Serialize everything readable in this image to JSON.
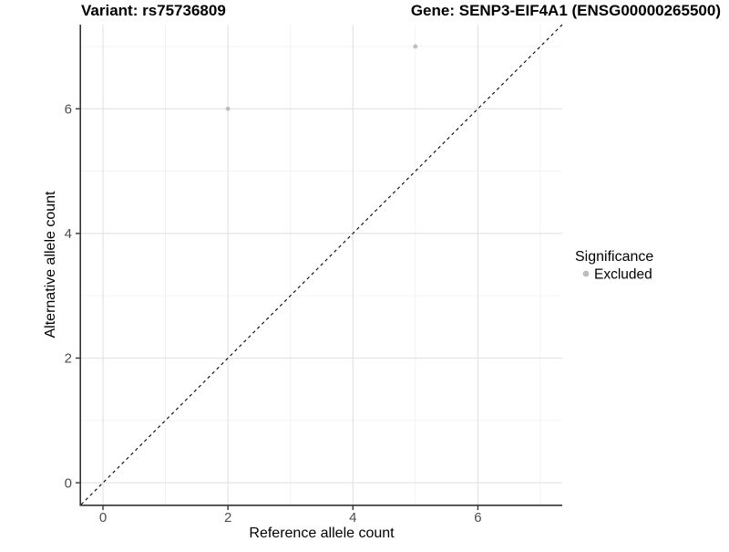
{
  "chart_data": {
    "type": "scatter",
    "titles": {
      "left": "Variant: rs75736809",
      "right": "Gene: SENP3-EIF4A1 (ENSG00000265500)"
    },
    "xlabel": "Reference allele count",
    "ylabel": "Alternative allele count",
    "xlim": [
      -0.35,
      7.35
    ],
    "ylim": [
      -0.35,
      7.35
    ],
    "x_ticks": [
      0,
      2,
      4,
      6
    ],
    "y_ticks": [
      0,
      2,
      4,
      6
    ],
    "x_minor_ticks": [
      1,
      3,
      5,
      7
    ],
    "y_minor_ticks": [
      1,
      3,
      5,
      7
    ],
    "grid": true,
    "points": [
      {
        "x": 2,
        "y": 6,
        "significance": "Excluded"
      },
      {
        "x": 5,
        "y": 7,
        "significance": "Excluded"
      }
    ],
    "reference_line": {
      "kind": "identity",
      "style": "dashed",
      "x1": -0.35,
      "y1": -0.35,
      "x2": 7.35,
      "y2": 7.35
    },
    "legend": {
      "position": "right",
      "title": "Significance",
      "items": [
        {
          "label": "Excluded",
          "color": "#bdbdbd"
        }
      ]
    },
    "colors": {
      "point": "#bdbdbd",
      "axis_line": "#333333",
      "tick_label": "#4d4d4d",
      "grid_major": "#e4e4e4",
      "grid_minor": "#f0f0f0",
      "dashed_line": "#000000",
      "text": "#000000"
    }
  }
}
